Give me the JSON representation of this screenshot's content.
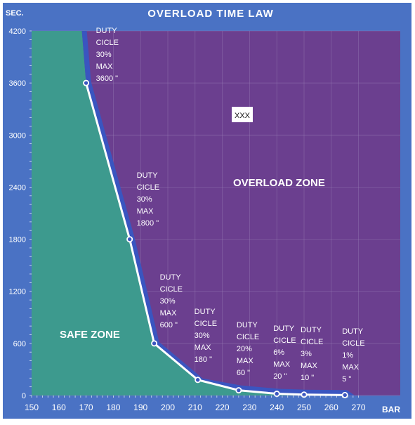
{
  "chart_data": {
    "type": "line",
    "title": "OVERLOAD TIME LAW",
    "ylabel": "SEC.",
    "xlabel": "BAR",
    "xlim": [
      150,
      275
    ],
    "ylim": [
      0,
      4200
    ],
    "x_ticks": [
      150,
      160,
      170,
      180,
      190,
      200,
      210,
      220,
      230,
      240,
      250,
      260,
      270
    ],
    "y_ticks": [
      0,
      600,
      1200,
      1800,
      2400,
      3000,
      3600,
      4200
    ],
    "grid": true,
    "zones": {
      "safe": "SAFE ZONE",
      "overload": "OVERLOAD ZONE"
    },
    "annotation_box": "XXX",
    "series": [
      {
        "x": [
          170,
          186,
          195,
          211,
          226,
          240,
          250,
          265
        ],
        "y": [
          3600,
          1800,
          600,
          180,
          60,
          20,
          10,
          5
        ],
        "labels": [
          [
            "DUTY",
            "CICLE",
            "30%",
            "MAX",
            "3600 \""
          ],
          [
            "DUTY",
            "CICLE",
            "30%",
            "MAX",
            "1800 \""
          ],
          [
            "DUTY",
            "CICLE",
            "30%",
            "MAX",
            "600 \""
          ],
          [
            "DUTY",
            "CICLE",
            "30%",
            "MAX",
            "180 \""
          ],
          [
            "DUTY",
            "CICLE",
            "20%",
            "MAX",
            "60 \""
          ],
          [
            "DUTY",
            "CICLE",
            "6%",
            "MAX",
            "20 \""
          ],
          [
            "DUTY",
            "CICLE",
            "3%",
            "MAX",
            "10 \""
          ],
          [
            "DUTY",
            "CICLE",
            "1%",
            "MAX",
            "5 \""
          ]
        ]
      }
    ],
    "colors": {
      "frame": "#4a72c4",
      "safe_zone": "#3d9a8e",
      "overload_zone": "#6b3f8f",
      "curve_band": "#3a55c0",
      "curve": "#ffffff",
      "grid": "#9a7fb6",
      "text": "#ffffff"
    }
  }
}
